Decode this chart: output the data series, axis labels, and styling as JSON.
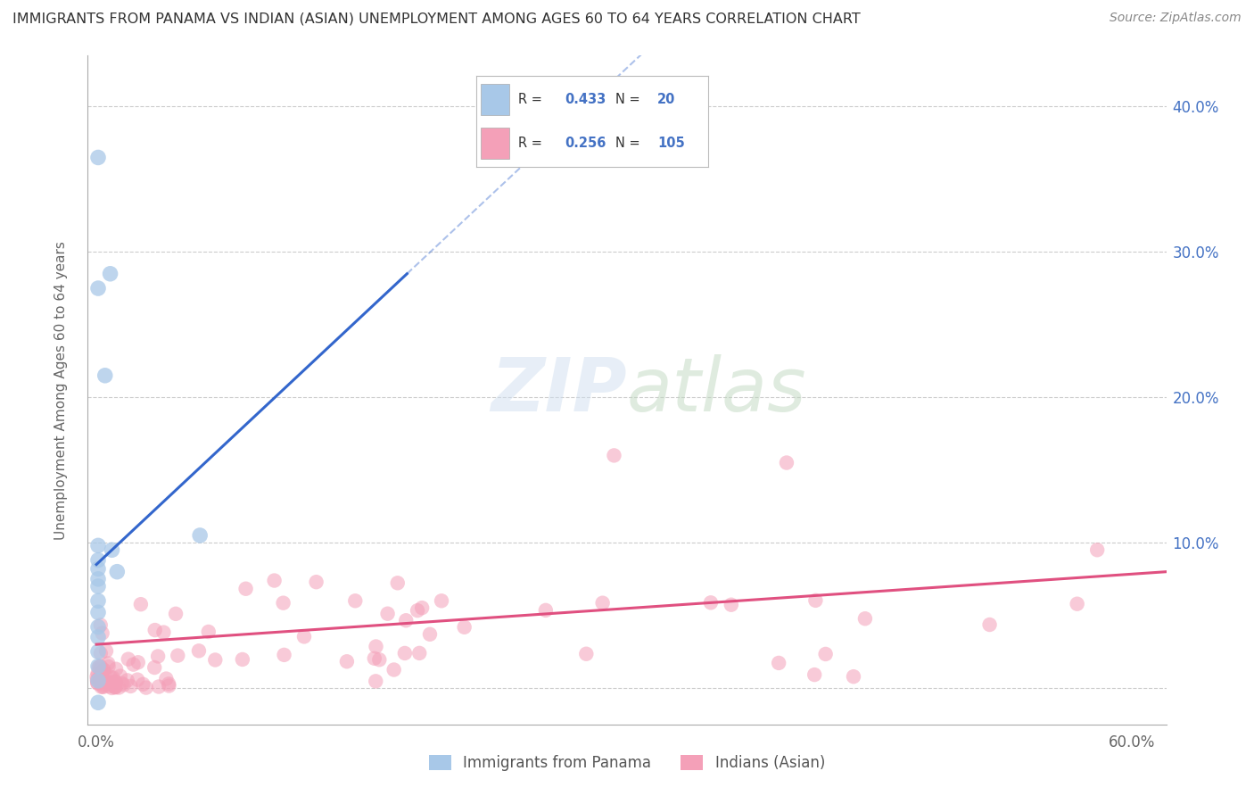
{
  "title": "IMMIGRANTS FROM PANAMA VS INDIAN (ASIAN) UNEMPLOYMENT AMONG AGES 60 TO 64 YEARS CORRELATION CHART",
  "source": "Source: ZipAtlas.com",
  "ylabel": "Unemployment Among Ages 60 to 64 years",
  "legend_bottom": [
    "Immigrants from Panama",
    "Indians (Asian)"
  ],
  "xlim": [
    -0.005,
    0.62
  ],
  "ylim": [
    -0.025,
    0.435
  ],
  "yticks": [
    0.0,
    0.1,
    0.2,
    0.3,
    0.4
  ],
  "ytick_labels_right": [
    "",
    "10.0%",
    "20.0%",
    "30.0%",
    "40.0%"
  ],
  "blue_R": "0.433",
  "blue_N": "20",
  "pink_R": "0.256",
  "pink_N": "105",
  "blue_color": "#a8c8e8",
  "pink_color": "#f4a0b8",
  "blue_line_color": "#3366cc",
  "pink_line_color": "#e05080",
  "background_color": "#ffffff",
  "grid_color": "#cccccc",
  "title_color": "#333333",
  "legend_text_color": "#4472c4",
  "blue_dots_x": [
    0.001,
    0.001,
    0.005,
    0.008,
    0.001,
    0.001,
    0.001,
    0.001,
    0.001,
    0.001,
    0.001,
    0.001,
    0.001,
    0.001,
    0.001,
    0.009,
    0.012,
    0.001,
    0.001,
    0.06
  ],
  "blue_dots_y": [
    0.365,
    0.275,
    0.215,
    0.285,
    0.098,
    0.088,
    0.082,
    0.075,
    0.07,
    0.06,
    0.052,
    0.042,
    0.035,
    0.025,
    0.015,
    0.095,
    0.08,
    0.005,
    -0.01,
    0.105
  ],
  "blue_line_x0": 0.0,
  "blue_line_y0": 0.085,
  "blue_line_x1": 0.18,
  "blue_line_y1": 0.285,
  "pink_line_x0": 0.0,
  "pink_line_y0": 0.03,
  "pink_line_x1": 0.62,
  "pink_line_y1": 0.08
}
